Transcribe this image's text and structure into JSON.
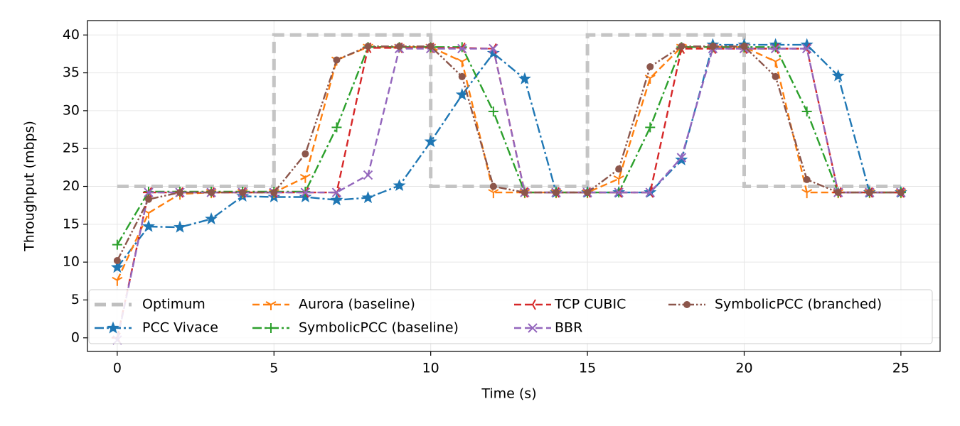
{
  "chart_data": {
    "type": "line",
    "x_label": "Time (s)",
    "y_label": "Throughput (mbps)",
    "x": [
      0,
      1,
      2,
      3,
      4,
      5,
      6,
      7,
      8,
      9,
      10,
      11,
      12,
      13,
      14,
      15,
      16,
      17,
      18,
      19,
      20,
      21,
      22,
      23,
      24,
      25
    ],
    "xlim": [
      -0.95,
      26.25
    ],
    "ylim": [
      -1.8,
      41.9
    ],
    "xticks": [
      0,
      5,
      10,
      15,
      20,
      25
    ],
    "yticks": [
      0,
      5,
      10,
      15,
      20,
      25,
      30,
      35,
      40
    ],
    "grid": true,
    "legend_loc": "lower center",
    "legend_columns": 4,
    "series": [
      {
        "name": "Optimum",
        "color": "#bfbfbf",
        "linestyle": "dashed",
        "marker": "none",
        "x": [
          0,
          5,
          5,
          10,
          10,
          15,
          15,
          20,
          20,
          25
        ],
        "values": [
          20,
          20,
          40,
          40,
          20,
          20,
          40,
          40,
          20,
          20
        ]
      },
      {
        "name": "PCC Vivace",
        "color": "#1f77b4",
        "linestyle": "dashdot",
        "marker": "star",
        "values": [
          9.3,
          14.7,
          14.6,
          15.7,
          18.7,
          18.6,
          18.6,
          18.2,
          18.5,
          20.1,
          25.9,
          32.1,
          37.6,
          34.2,
          19.2,
          19.2,
          19.2,
          19.2,
          23.5,
          38.7,
          38.7,
          38.7,
          38.7,
          34.6,
          19.2,
          19.2
        ]
      },
      {
        "name": "Aurora (baseline)",
        "color": "#ff7f0e",
        "linestyle": "dashed",
        "marker": "tri_down",
        "values": [
          7.6,
          16.5,
          19.0,
          19.2,
          19.2,
          19.2,
          21.2,
          36.7,
          38.4,
          38.4,
          38.4,
          36.5,
          19.2,
          19.2,
          19.2,
          19.2,
          21.0,
          34.3,
          38.4,
          38.4,
          38.4,
          36.5,
          19.2,
          19.2,
          19.2,
          19.2
        ]
      },
      {
        "name": "SymbolicPCC (baseline)",
        "color": "#2ca02c",
        "linestyle": "dashdot",
        "marker": "plus",
        "values": [
          12.3,
          19.3,
          19.3,
          19.3,
          19.3,
          19.3,
          19.3,
          27.8,
          38.4,
          38.4,
          38.4,
          38.4,
          29.9,
          19.2,
          19.2,
          19.2,
          19.2,
          27.8,
          38.4,
          38.4,
          38.4,
          38.4,
          29.9,
          19.2,
          19.2,
          19.2
        ]
      },
      {
        "name": "TCP CUBIC",
        "color": "#d62728",
        "linestyle": "dashed",
        "marker": "tri_right",
        "values": [
          0,
          19.2,
          19.2,
          19.2,
          19.2,
          19.2,
          19.2,
          19.2,
          38.3,
          38.3,
          38.3,
          38.3,
          38.2,
          19.2,
          19.2,
          19.2,
          19.2,
          19.2,
          38.2,
          38.2,
          38.2,
          38.2,
          38.2,
          19.2,
          19.2,
          19.2
        ]
      },
      {
        "name": "BBR",
        "color": "#9467bd",
        "linestyle": "dashed",
        "marker": "x",
        "values": [
          -0.3,
          19.2,
          19.2,
          19.2,
          19.2,
          19.2,
          19.2,
          19.2,
          21.5,
          38.2,
          38.2,
          38.2,
          38.2,
          19.2,
          19.2,
          19.2,
          19.2,
          19.2,
          23.8,
          38.2,
          38.2,
          38.2,
          38.2,
          19.2,
          19.2,
          19.2
        ]
      },
      {
        "name": "SymbolicPCC (branched)",
        "color": "#8c564b",
        "linestyle": "dashdotdot",
        "marker": "circle",
        "values": [
          10.2,
          18.3,
          19.2,
          19.2,
          19.2,
          19.2,
          24.3,
          36.7,
          38.5,
          38.5,
          38.5,
          34.5,
          20.0,
          19.2,
          19.2,
          19.2,
          22.3,
          35.8,
          38.5,
          38.5,
          38.5,
          34.5,
          20.9,
          19.2,
          19.2,
          19.2
        ]
      }
    ]
  }
}
